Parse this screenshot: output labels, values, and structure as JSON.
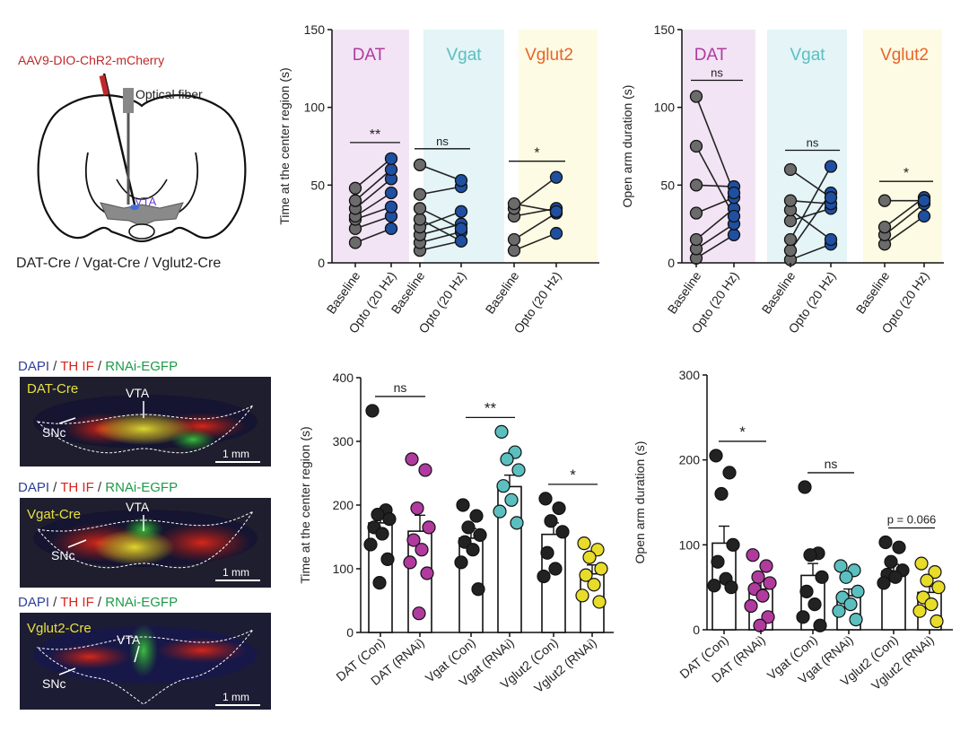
{
  "colors": {
    "dat": "#b03a9e",
    "vgat": "#5bbfbf",
    "vglut2": "#e8642a",
    "dat_bg": "#f3e4f5",
    "vgat_bg": "#e4f4f7",
    "vglut2_bg": "#fdfbe3",
    "baseline_dot": "#6b6b6b",
    "opto_dot": "#1f4fa0",
    "con_dot": "#222222",
    "dat_rnai": "#b03a9e",
    "vgat_rnai": "#5bbfbf",
    "vglut2_rnai": "#e8dc2a",
    "dapi": "#2f3f9a",
    "th": "#d8241e",
    "egfp": "#1e9a4a",
    "virus": "#c0282a"
  },
  "schematic": {
    "virus_label": "AAV9-DIO-ChR2-mCherry",
    "fiber_label": "Optical fiber",
    "region_label": "VTA",
    "mouse_lines": "DAT-Cre / Vgat-Cre / Vglut2-Cre"
  },
  "histology": {
    "legend": {
      "dapi": "DAPI",
      "sep": " / ",
      "th": "TH IF",
      "egfp": "RNAi-EGFP"
    },
    "panels": [
      {
        "line": "DAT-Cre",
        "vta": "VTA",
        "snc": "SNc",
        "scale": "1 mm"
      },
      {
        "line": "Vgat-Cre",
        "vta": "VTA",
        "snc": "SNc",
        "scale": "1 mm"
      },
      {
        "line": "Vglut2-Cre",
        "vta": "VTA",
        "snc": "SNc",
        "scale": "1 mm"
      }
    ]
  },
  "chart_data": [
    {
      "id": "opto_center",
      "type": "scatter",
      "ylabel": "Time at the center region (s)",
      "ylim": [
        0,
        150
      ],
      "yticks": [
        0,
        50,
        100,
        150
      ],
      "groups": [
        {
          "name": "DAT",
          "sig": "**",
          "categories": [
            "Baseline",
            "Opto (20 Hz)"
          ],
          "pairs": [
            [
              13,
              22
            ],
            [
              22,
              30
            ],
            [
              28,
              36
            ],
            [
              30,
              45
            ],
            [
              35,
              54
            ],
            [
              40,
              60
            ],
            [
              48,
              67
            ]
          ]
        },
        {
          "name": "Vgat",
          "sig": "ns",
          "categories": [
            "Baseline",
            "Opto (20 Hz)"
          ],
          "pairs": [
            [
              8,
              14
            ],
            [
              13,
              20
            ],
            [
              18,
              25
            ],
            [
              23,
              33
            ],
            [
              28,
              14
            ],
            [
              35,
              22
            ],
            [
              44,
              49
            ],
            [
              63,
              53
            ]
          ]
        },
        {
          "name": "Vglut2",
          "sig": "*",
          "categories": [
            "Baseline",
            "Opto (20 Hz)"
          ],
          "pairs": [
            [
              8,
              19
            ],
            [
              15,
              32
            ],
            [
              30,
              35
            ],
            [
              35,
              55
            ],
            [
              38,
              33
            ]
          ]
        }
      ]
    },
    {
      "id": "opto_open_arm",
      "type": "scatter",
      "ylabel": "Open arm duration (s)",
      "ylim": [
        0,
        150
      ],
      "yticks": [
        0,
        50,
        100,
        150
      ],
      "groups": [
        {
          "name": "DAT",
          "sig": "ns",
          "categories": [
            "Baseline",
            "Opto (20 Hz)"
          ],
          "pairs": [
            [
              3,
              18
            ],
            [
              9,
              25
            ],
            [
              15,
              35
            ],
            [
              32,
              42
            ],
            [
              50,
              49
            ],
            [
              75,
              30
            ],
            [
              107,
              45
            ]
          ]
        },
        {
          "name": "Vgat",
          "sig": "ns",
          "categories": [
            "Baseline",
            "Opto (20 Hz)"
          ],
          "pairs": [
            [
              2,
              12
            ],
            [
              8,
              45
            ],
            [
              15,
              62
            ],
            [
              27,
              35
            ],
            [
              34,
              15
            ],
            [
              40,
              38
            ],
            [
              60,
              42
            ]
          ]
        },
        {
          "name": "Vglut2",
          "sig": "*",
          "categories": [
            "Baseline",
            "Opto (20 Hz)"
          ],
          "pairs": [
            [
              12,
              30
            ],
            [
              18,
              38
            ],
            [
              23,
              42
            ],
            [
              40,
              40
            ]
          ]
        }
      ]
    },
    {
      "id": "rnai_center",
      "type": "bar",
      "ylabel": "Time at the center region (s)",
      "ylim": [
        0,
        400
      ],
      "yticks": [
        0,
        100,
        200,
        300,
        400
      ],
      "categories": [
        "DAT (Con)",
        "DAT (RNAi)",
        "Vgat (Con)",
        "Vgat (RNAi)",
        "Vglut2 (Con)",
        "Vglut2 (RNAi)"
      ],
      "means": [
        172,
        159,
        148,
        229,
        154,
        92
      ],
      "sems": [
        20,
        25,
        15,
        18,
        18,
        14
      ],
      "points": [
        [
          348,
          192,
          185,
          178,
          165,
          155,
          138,
          115,
          78
        ],
        [
          272,
          255,
          195,
          165,
          145,
          130,
          110,
          93,
          30
        ],
        [
          200,
          183,
          165,
          153,
          142,
          130,
          110,
          68
        ],
        [
          315,
          283,
          272,
          255,
          230,
          208,
          190,
          172
        ],
        [
          210,
          195,
          175,
          158,
          125,
          100,
          88
        ],
        [
          140,
          130,
          118,
          100,
          90,
          75,
          58,
          48
        ]
      ],
      "significance": [
        {
          "pair": [
            0,
            1
          ],
          "label": "ns"
        },
        {
          "pair": [
            2,
            3
          ],
          "label": "**"
        },
        {
          "pair": [
            4,
            5
          ],
          "label": "*"
        }
      ]
    },
    {
      "id": "rnai_open_arm",
      "type": "bar",
      "ylabel": "Open arm duration (s)",
      "ylim": [
        0,
        300
      ],
      "yticks": [
        0,
        100,
        200,
        300
      ],
      "categories": [
        "DAT (Con)",
        "DAT (RNAi)",
        "Vgat (Con)",
        "Vgat (RNAi)",
        "Vglut2 (Con)",
        "Vglut2 (RNAi)"
      ],
      "means": [
        102,
        48,
        64,
        40,
        69,
        44
      ],
      "sems": [
        20,
        10,
        14,
        8,
        8,
        7
      ],
      "points": [
        [
          205,
          185,
          160,
          100,
          80,
          60,
          52,
          50
        ],
        [
          88,
          75,
          62,
          55,
          48,
          40,
          28,
          15,
          5
        ],
        [
          168,
          90,
          88,
          62,
          45,
          30,
          15,
          5
        ],
        [
          75,
          70,
          62,
          45,
          38,
          30,
          22,
          12
        ],
        [
          103,
          97,
          80,
          70,
          65,
          62,
          55
        ],
        [
          78,
          68,
          58,
          50,
          38,
          30,
          22,
          10
        ]
      ],
      "significance": [
        {
          "pair": [
            0,
            1
          ],
          "label": "*"
        },
        {
          "pair": [
            2,
            3
          ],
          "label": "ns"
        },
        {
          "pair": [
            4,
            5
          ],
          "label": "p = 0.066"
        }
      ]
    }
  ]
}
